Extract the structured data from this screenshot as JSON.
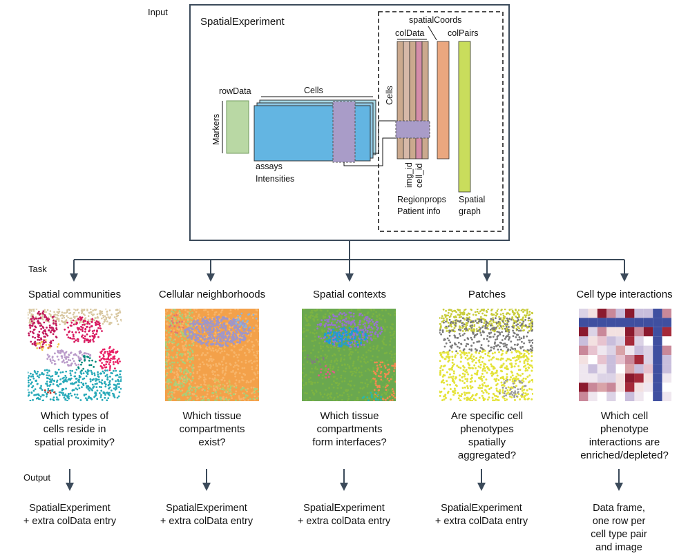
{
  "input": {
    "section_label": "Input",
    "title": "SpatialExperiment",
    "rowData": "rowData",
    "markers": "Markers",
    "cells_top": "Cells",
    "assays": "assays",
    "intensities": "Intensities",
    "cells_side": "Cells",
    "colData": "colData",
    "spatialCoords": "spatialCoords",
    "colPairs": "colPairs",
    "img_id": "img_id",
    "cell_id": "cell_id",
    "regionprops": "Regionprops",
    "patient_info": "Patient info",
    "spatial": "Spatial",
    "graph": "graph"
  },
  "task_label": "Task",
  "output_label": "Output",
  "tasks": [
    {
      "title": "Spatial communities",
      "question": [
        "Which types of",
        "cells reside in",
        "spatial proximity?"
      ],
      "output": [
        "SpatialExperiment",
        "+ extra colData entry"
      ]
    },
    {
      "title": "Cellular neighborhoods",
      "question": [
        "Which tissue",
        "compartments",
        "exist?"
      ],
      "output": [
        "SpatialExperiment",
        "+ extra colData entry"
      ]
    },
    {
      "title": "Spatial contexts",
      "question": [
        "Which tissue",
        "compartments",
        "form interfaces?"
      ],
      "output": [
        "SpatialExperiment",
        "+ extra colData entry"
      ]
    },
    {
      "title": "Patches",
      "question": [
        "Are specific cell",
        "phenotypes",
        "spatially",
        "aggregated?"
      ],
      "output": [
        "SpatialExperiment",
        "+ extra colData entry"
      ]
    },
    {
      "title": "Cell type interactions",
      "question": [
        "Which cell",
        "phenotype",
        "interactions are",
        "enriched/depleted?"
      ],
      "output": [
        "Data frame,",
        "one row per",
        "cell type pair",
        "and image"
      ]
    }
  ],
  "colors": {
    "box_border": "#3b4a5a",
    "arrow": "#3b4a5a",
    "rowData_fill": "#b9d8a4",
    "assay_fill": "#63b5e2",
    "assay_back": "#a6d7e4",
    "highlight": "#a99cc8",
    "colData_tan": "#cba98e",
    "colData_rose": "#d48da9",
    "spatialCoords_fill": "#eaa77f",
    "colPairs_fill": "#c9dd5c"
  }
}
